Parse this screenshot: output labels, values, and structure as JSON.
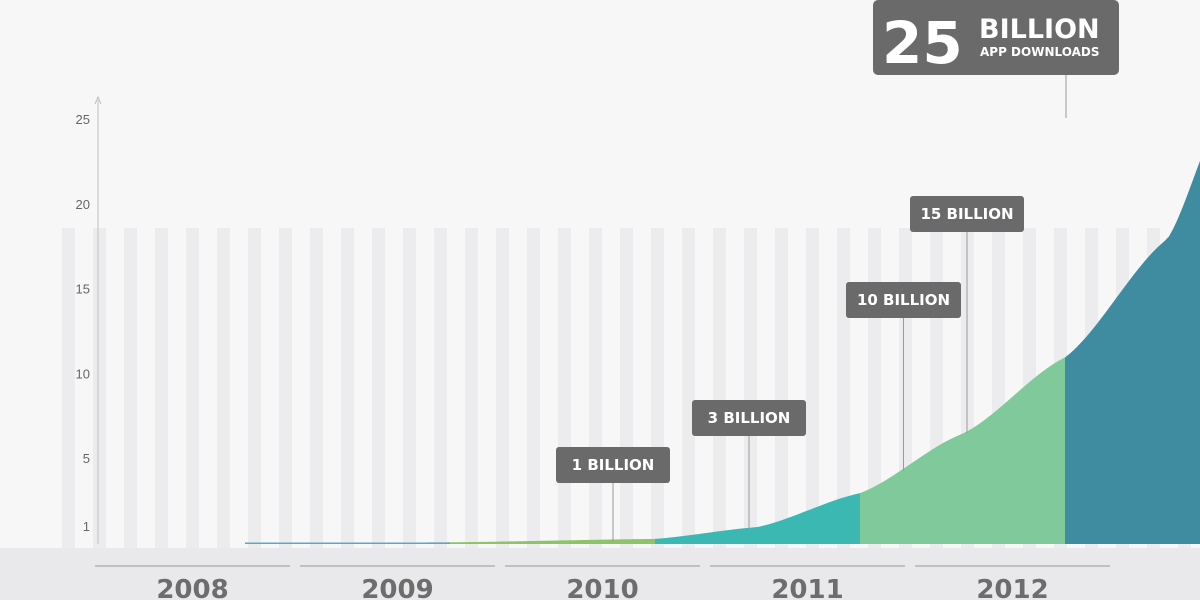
{
  "chart_data": {
    "type": "area",
    "x": [
      2008,
      2009,
      2010,
      2011,
      2012
    ],
    "categories": [
      "2008",
      "2009",
      "2010",
      "2011",
      "2012"
    ],
    "ylim": [
      0,
      26
    ],
    "yticks": [
      1,
      5,
      10,
      15,
      20,
      25
    ],
    "grid": false,
    "curve_points": [
      {
        "year": 2008.0,
        "value": 0.0
      },
      {
        "year": 2009.0,
        "value": 0.1
      },
      {
        "year": 2010.0,
        "value": 0.3
      },
      {
        "year": 2010.5,
        "value": 1.0
      },
      {
        "year": 2011.0,
        "value": 3.0
      },
      {
        "year": 2011.5,
        "value": 6.5
      },
      {
        "year": 2012.0,
        "value": 11.0
      },
      {
        "year": 2012.5,
        "value": 18.0
      },
      {
        "year": 2012.75,
        "value": 25.0
      }
    ],
    "segment_colors": [
      "#5aa9c4",
      "#8ec36a",
      "#3cb8b2",
      "#7fc99a",
      "#3f8ca0"
    ],
    "annotations": [
      {
        "label": "1 BILLION",
        "year": 2010.5,
        "value": 1
      },
      {
        "label": "3 BILLION",
        "year": 2011.2,
        "value": 3
      },
      {
        "label": "10 BILLION",
        "year": 2011.95,
        "value": 10
      },
      {
        "label": "15 BILLION",
        "year": 2012.25,
        "value": 15
      }
    ],
    "headline": {
      "number": "25",
      "word": "BILLION",
      "sub": "APP DOWNLOADS",
      "year": 2012.75,
      "value": 25
    }
  }
}
